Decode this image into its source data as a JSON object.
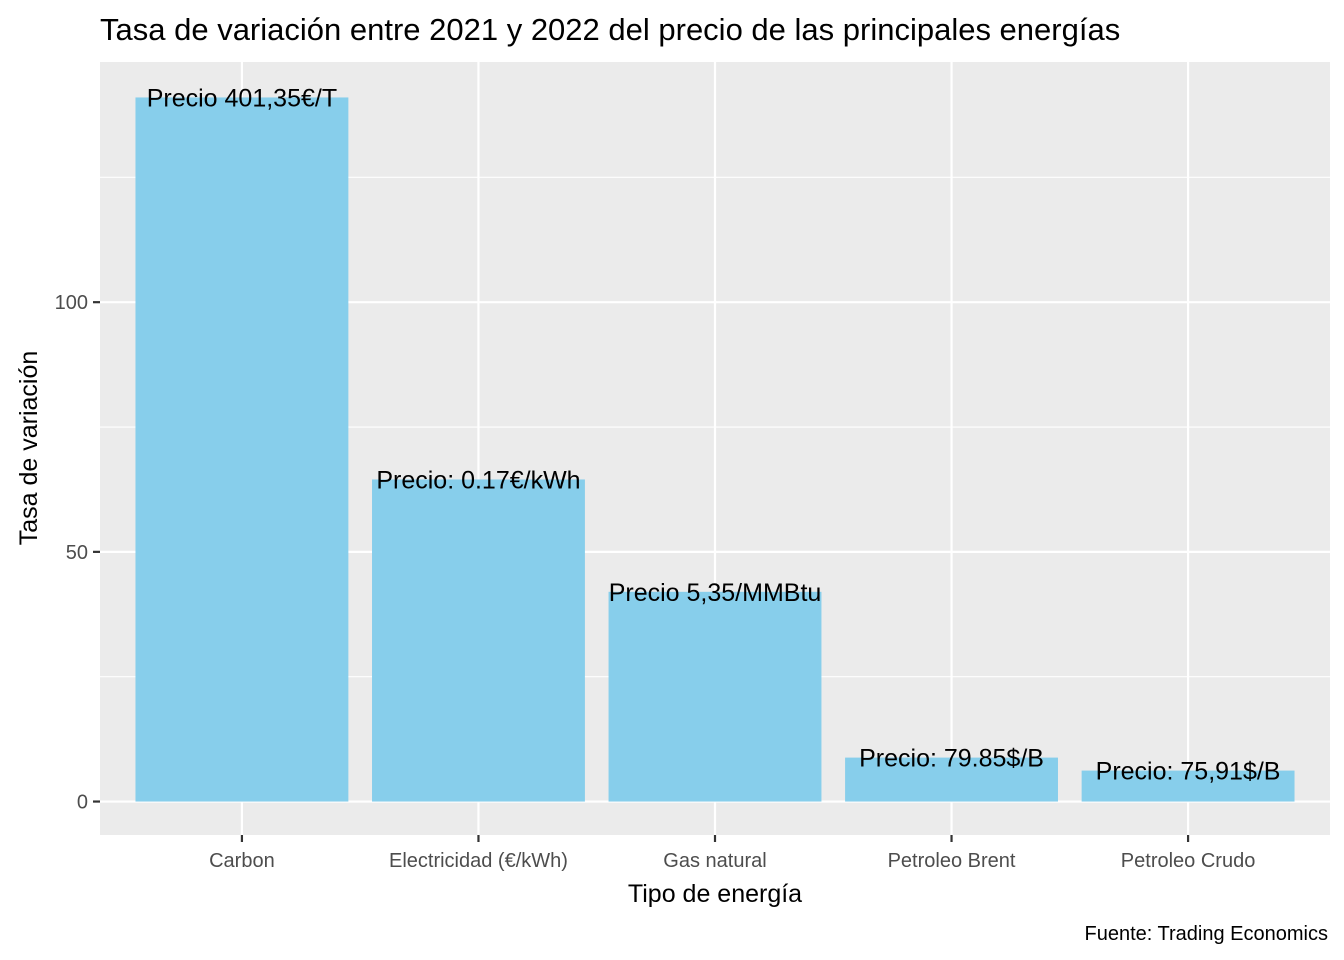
{
  "chart_data": {
    "type": "bar",
    "title": "Tasa de variación entre 2021 y 2022 del precio de las principales energías",
    "xlabel": "Tipo de energía",
    "ylabel": "Tasa de variación",
    "caption": "Fuente: Trading Economics",
    "categories": [
      "Carbon",
      "Electricidad (€/kWh)",
      "Gas natural",
      "Petroleo Brent",
      "Petroleo Crudo"
    ],
    "values": [
      141,
      64.5,
      42,
      8.8,
      6.2
    ],
    "labels": [
      "Precio 401,35€/T",
      "Precio: 0.17€/kWh",
      "Precio 5,35/MMBtu",
      "Precio: 79.85$/B",
      "Precio: 75,91$/B"
    ],
    "ylim": [
      -6.7,
      148.1
    ],
    "yticks": [
      0,
      50,
      100
    ],
    "grid": true,
    "bar_color": "#87CEEB",
    "panel_color": "#EBEBEB",
    "grid_color": "#FFFFFF"
  }
}
